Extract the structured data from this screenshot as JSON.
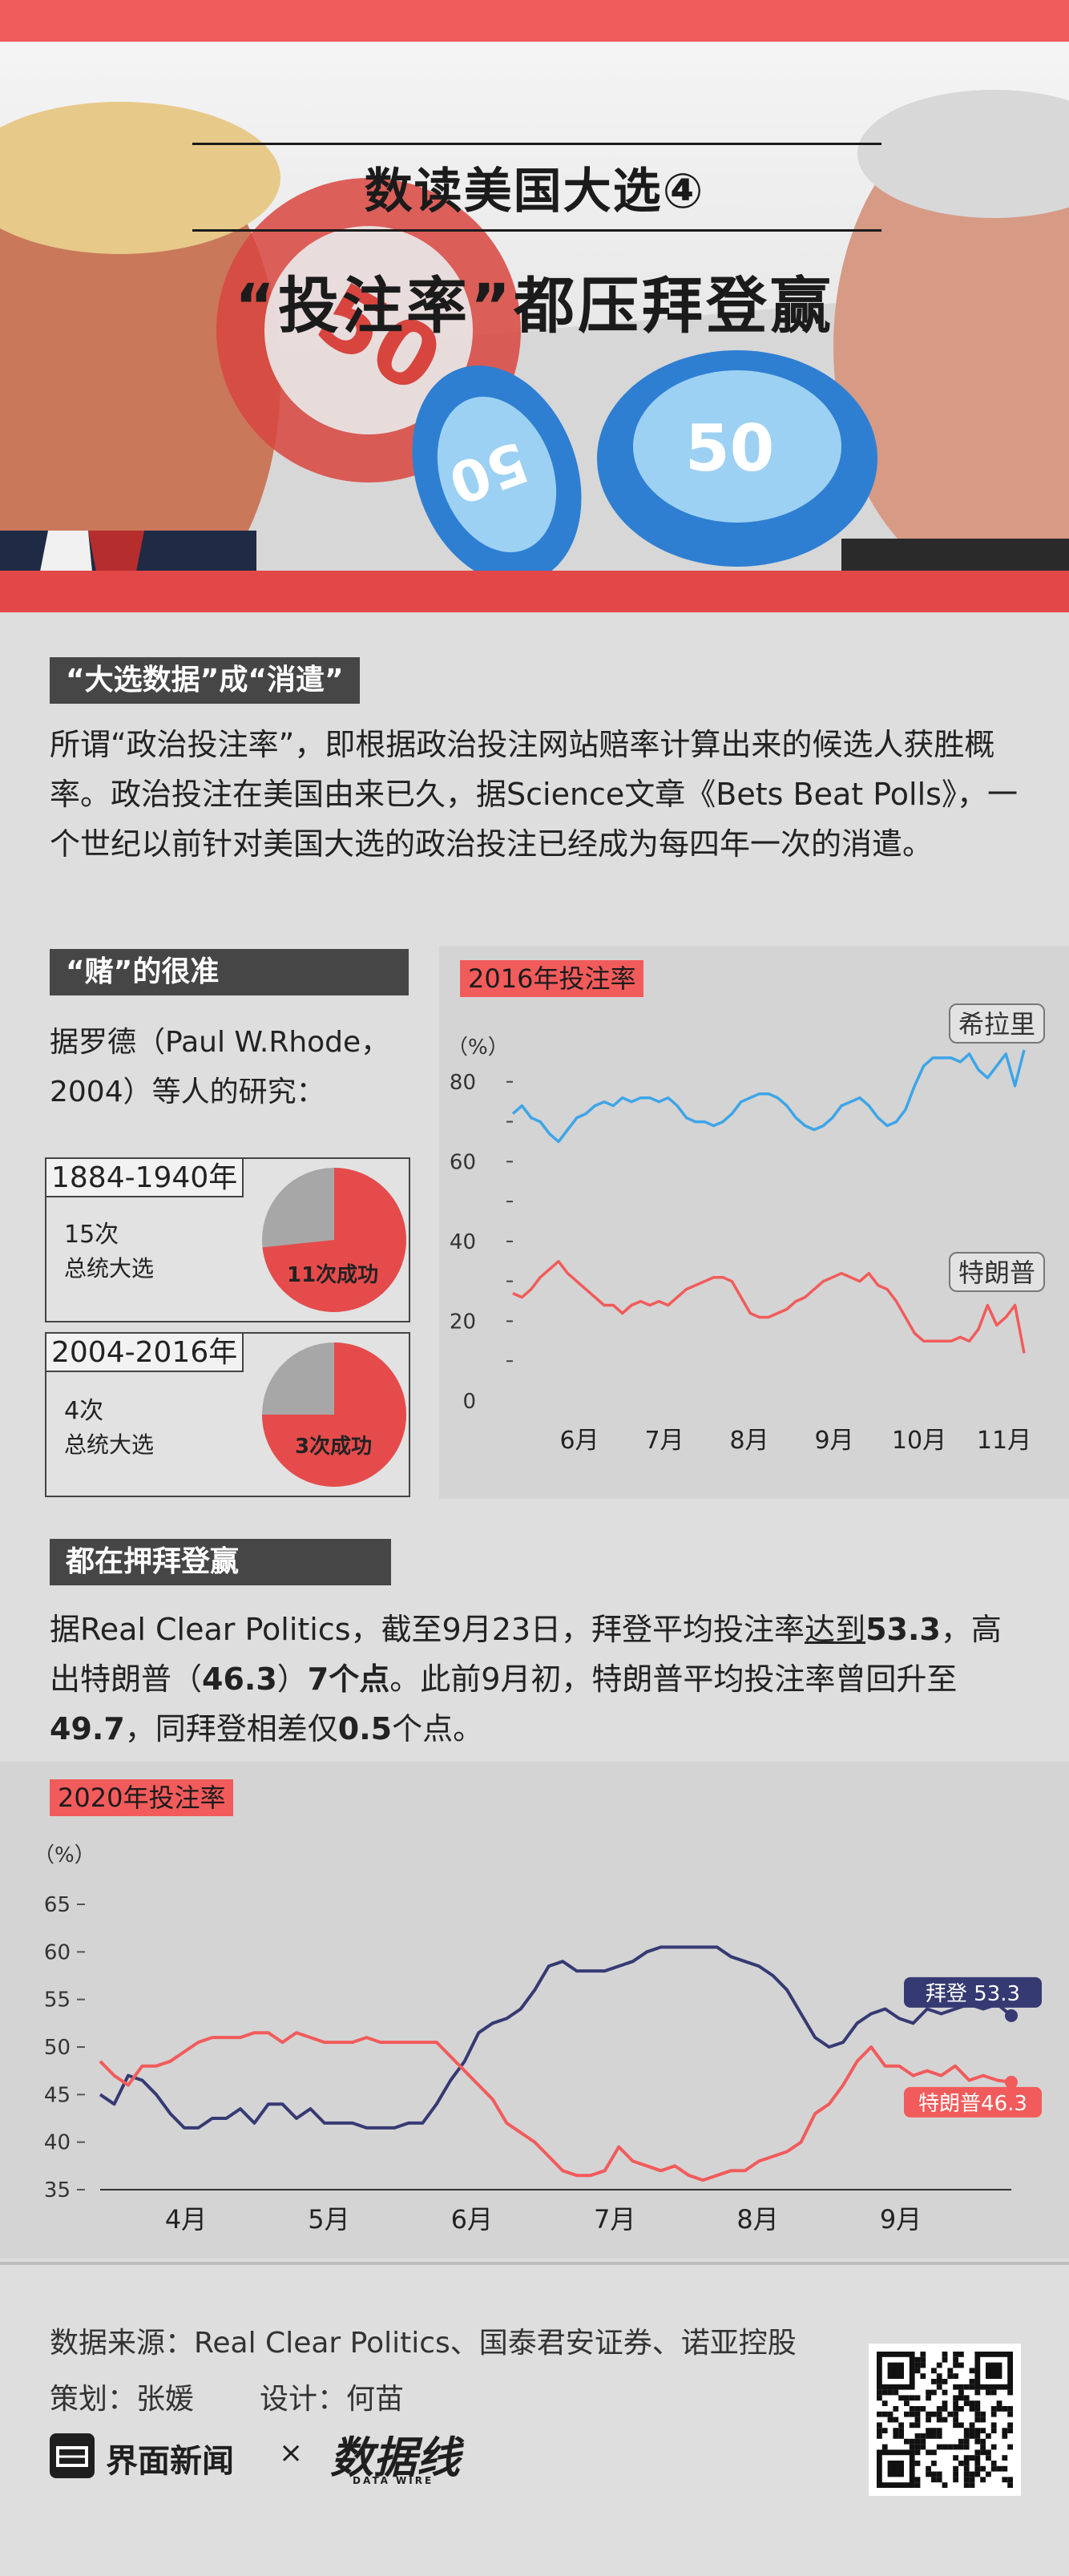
{
  "header": {
    "title_line1": "数读美国大选④",
    "title_line2": "“投注率”都压拜登赢"
  },
  "section1": {
    "label": "“大选数据”成“消遣”",
    "text": "所谓“政治投注率”，即根据政治投注网站赔率计算出来的候选人获胜概率。政治投注在美国由来已久，据Science文章《Bets Beat Polls》，一个世纪以前针对美国大选的政治投注已经成为每四年一次的消遣。"
  },
  "section2": {
    "label": "“赌”的很准",
    "intro": "据罗德（Paul W.Rhode，2004）等人的研究：",
    "boxes": [
      {
        "period": "1884-1940年",
        "total_num": "15次",
        "total_label": "总统大选",
        "success_label": "11次成功",
        "success": 11,
        "total": 15
      },
      {
        "period": "2004-2016年",
        "total_num": "4次",
        "total_label": "总统大选",
        "success_label": "3次成功",
        "success": 3,
        "total": 4
      }
    ]
  },
  "section3": {
    "label": "都在押拜登赢",
    "text_parts": [
      "据Real Clear Politics，截至9月23日，拜登平均投注率",
      "达到",
      "53.3",
      "，高出特朗普（",
      "46.3",
      "）",
      "7个点",
      "。此前9月初，特朗普平均投注率曾回升至",
      "49.7",
      "，同拜登相差仅",
      "0.5",
      "个点。"
    ]
  },
  "footer": {
    "source": "数据来源：Real Clear Politics、国泰君安证券、诺亚控股",
    "credits_plan": "策划：张媛",
    "credits_design": "设计：何苗",
    "brand": "界面新闻",
    "times": "×",
    "logo_text": "数据线",
    "logo_sub": "DATA WIRE"
  },
  "colors": {
    "red": "#f25b5b",
    "blue": "#3da5e8",
    "navy": "#363a73",
    "dark": "#464646"
  },
  "icons": [
    "news-logo-icon",
    "qr-code-icon",
    "pie-chart-icon"
  ],
  "chart_data": [
    {
      "type": "line",
      "title": "2016年投注率",
      "unit": "（%）",
      "ylim": [
        0,
        90
      ],
      "yticks": [
        0,
        20,
        40,
        60,
        80
      ],
      "months": [
        "6月",
        "7月",
        "8月",
        "9月",
        "10月",
        "11月"
      ],
      "series": [
        {
          "name": "希拉里",
          "color": "#3da5e8",
          "values": [
            72,
            74,
            71,
            70,
            67,
            65,
            68,
            71,
            72,
            74,
            75,
            74,
            76,
            75,
            76,
            76,
            75,
            76,
            74,
            71,
            70,
            70,
            69,
            70,
            72,
            75,
            76,
            77,
            77,
            76,
            74,
            71,
            69,
            68,
            69,
            71,
            74,
            75,
            76,
            74,
            71,
            69,
            70,
            73,
            79,
            84,
            86,
            86,
            86,
            85,
            87,
            83,
            81,
            84,
            87,
            79,
            88
          ]
        },
        {
          "name": "特朗普",
          "color": "#f25b5b",
          "values": [
            27,
            26,
            28,
            31,
            33,
            35,
            32,
            30,
            28,
            26,
            24,
            24,
            22,
            24,
            25,
            24,
            25,
            24,
            26,
            28,
            29,
            30,
            31,
            31,
            30,
            26,
            22,
            21,
            21,
            22,
            23,
            25,
            26,
            28,
            30,
            31,
            32,
            31,
            30,
            32,
            29,
            28,
            25,
            21,
            17,
            15,
            15,
            15,
            15,
            16,
            15,
            18,
            24,
            19,
            21,
            24,
            12
          ]
        }
      ]
    },
    {
      "type": "line",
      "title": "2020年投注率",
      "unit": "（%）",
      "ylim": [
        35,
        65
      ],
      "yticks": [
        35,
        40,
        45,
        50,
        55,
        60,
        65
      ],
      "months": [
        "4月",
        "5月",
        "6月",
        "7月",
        "8月",
        "9月"
      ],
      "series": [
        {
          "name": "拜登",
          "label": "拜登 53.3",
          "color": "#363a73",
          "values": [
            45,
            44,
            47,
            46.5,
            45,
            43,
            41.5,
            41.5,
            42.5,
            42.5,
            43.5,
            42,
            44,
            44,
            42.5,
            43.5,
            42,
            42,
            42,
            41.5,
            41.5,
            41.5,
            42,
            42,
            44,
            46.5,
            48.5,
            51.5,
            52.5,
            53,
            54,
            56,
            58.5,
            59,
            58,
            58,
            58,
            58.5,
            59,
            60,
            60.5,
            60.5,
            60.5,
            60.5,
            60.5,
            59.5,
            59,
            58.5,
            57.5,
            56,
            53.5,
            51,
            50,
            50.5,
            52.5,
            53.5,
            54,
            53,
            52.5,
            54,
            53.5,
            54,
            54.5,
            54,
            54.5,
            53.3
          ]
        },
        {
          "name": "特朗普",
          "label": "特朗普46.3",
          "color": "#f25b5b",
          "values": [
            48.5,
            47,
            46,
            48,
            48,
            48.5,
            49.5,
            50.5,
            51,
            51,
            51,
            51.5,
            51.5,
            50.5,
            51.5,
            51,
            50.5,
            50.5,
            50.5,
            51,
            50.5,
            50.5,
            50.5,
            50.5,
            50.5,
            49,
            47.5,
            46,
            44.5,
            42,
            41,
            40,
            38.5,
            37,
            36.5,
            36.5,
            37,
            39.5,
            38,
            37.5,
            37,
            37.5,
            36.5,
            36,
            36.5,
            37,
            37,
            38,
            38.5,
            39,
            40,
            43,
            44,
            46,
            48.5,
            50,
            48,
            48,
            47,
            47.5,
            47,
            48,
            46.5,
            47,
            46.5,
            46.3
          ]
        }
      ]
    }
  ]
}
